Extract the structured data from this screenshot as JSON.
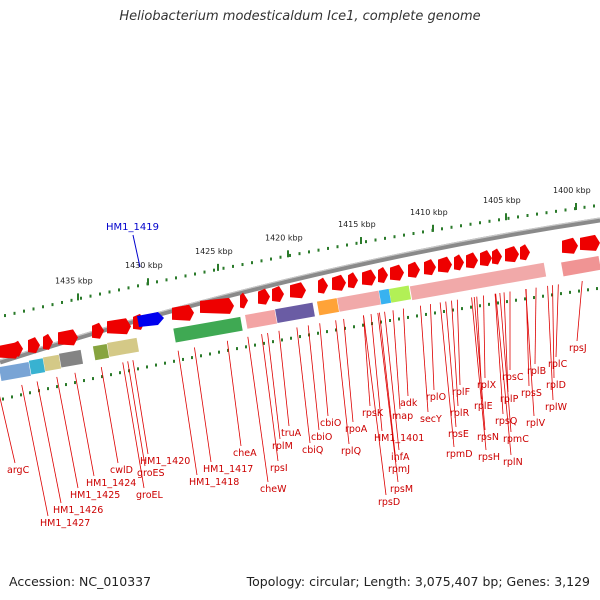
{
  "title": "Heliobacterium modesticaldum Ice1, complete genome",
  "footer": {
    "accession": "Accession: NC_010337",
    "summary": "Topology: circular; Length: 3,075,407 bp; Genes: 3,129"
  },
  "colors": {
    "gene_label": "#cc0000",
    "highlight_label": "#0000cc",
    "backbone": "#8a8a8a",
    "tick": "#2a7a2a"
  },
  "scale_ticks": [
    {
      "label": "1435 kbp"
    },
    {
      "label": "1430 kbp"
    },
    {
      "label": "1425 kbp"
    },
    {
      "label": "1420 kbp"
    },
    {
      "label": "1415 kbp"
    },
    {
      "label": "1410 kbp"
    },
    {
      "label": "1405 kbp"
    },
    {
      "label": "1400 kbp"
    }
  ],
  "highlight_gene": {
    "label": "HM1_1419",
    "color": "#0000ee"
  },
  "gene_labels": [
    {
      "label": "argC"
    },
    {
      "label": "HM1_1427"
    },
    {
      "label": "HM1_1426"
    },
    {
      "label": "HM1_1425"
    },
    {
      "label": "HM1_1424"
    },
    {
      "label": "cwlD"
    },
    {
      "label": "groEL"
    },
    {
      "label": "groES"
    },
    {
      "label": "HM1_1420"
    },
    {
      "label": "HM1_1418"
    },
    {
      "label": "HM1_1417"
    },
    {
      "label": "cheA"
    },
    {
      "label": "cheW"
    },
    {
      "label": "rpsI"
    },
    {
      "label": "rplM"
    },
    {
      "label": "truA"
    },
    {
      "label": "cbiQ"
    },
    {
      "label": "cbiO"
    },
    {
      "label": "cbiO"
    },
    {
      "label": "rplQ"
    },
    {
      "label": "rpoA"
    },
    {
      "label": "rpsK"
    },
    {
      "label": "rpsD"
    },
    {
      "label": "rpsM"
    },
    {
      "label": "rpmJ"
    },
    {
      "label": "infA"
    },
    {
      "label": "HM1_1401"
    },
    {
      "label": "map"
    },
    {
      "label": "adk"
    },
    {
      "label": "secY"
    },
    {
      "label": "rplO"
    },
    {
      "label": "rpmD"
    },
    {
      "label": "rpsE"
    },
    {
      "label": "rplR"
    },
    {
      "label": "rplF"
    },
    {
      "label": "rpsH"
    },
    {
      "label": "rpsN"
    },
    {
      "label": "rplE"
    },
    {
      "label": "rplX"
    },
    {
      "label": "rplN"
    },
    {
      "label": "rpmC"
    },
    {
      "label": "rpsQ"
    },
    {
      "label": "rplP"
    },
    {
      "label": "rplV"
    },
    {
      "label": "rpsC"
    },
    {
      "label": "rpsS"
    },
    {
      "label": "rplB"
    },
    {
      "label": "rplW"
    },
    {
      "label": "rplD"
    },
    {
      "label": "rplC"
    },
    {
      "label": "rpsJ"
    }
  ]
}
